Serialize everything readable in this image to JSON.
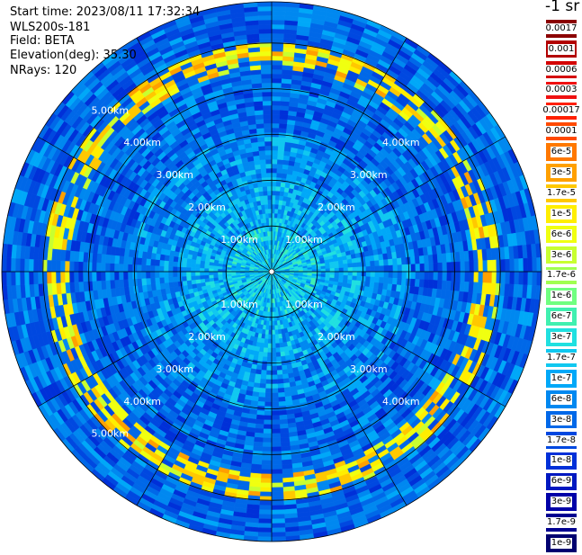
{
  "header": {
    "start_time": "Start time: 2023/08/11 17:32:34",
    "instrument": "WLS200s-181",
    "field": "Field: BETA",
    "elevation": "Elevation(deg): 35.30",
    "nrays": "NRays: 120"
  },
  "colorbar": {
    "unit": "-1 sr",
    "entries": [
      {
        "label": "0.0017",
        "color": "#8b0000"
      },
      {
        "label": "0.001",
        "color": "#b20000"
      },
      {
        "label": "0.0006",
        "color": "#d40000"
      },
      {
        "label": "0.0003",
        "color": "#f01010"
      },
      {
        "label": "0.00017",
        "color": "#ff2000"
      },
      {
        "label": "0.0001",
        "color": "#ff4a00"
      },
      {
        "label": "6e-5",
        "color": "#ff7800"
      },
      {
        "label": "3e-5",
        "color": "#ffa000"
      },
      {
        "label": "1.7e-5",
        "color": "#ffc800"
      },
      {
        "label": "1e-5",
        "color": "#ffee00"
      },
      {
        "label": "6e-6",
        "color": "#f0ff10"
      },
      {
        "label": "3e-6",
        "color": "#c8ff30"
      },
      {
        "label": "1.7e-6",
        "color": "#a0ff50"
      },
      {
        "label": "1e-6",
        "color": "#70ff80"
      },
      {
        "label": "6e-7",
        "color": "#40f0b0"
      },
      {
        "label": "3e-7",
        "color": "#20e0e0"
      },
      {
        "label": "1.7e-7",
        "color": "#10c8f0"
      },
      {
        "label": "1e-7",
        "color": "#00a8f8"
      },
      {
        "label": "6e-8",
        "color": "#0088f0"
      },
      {
        "label": "3e-8",
        "color": "#0068e8"
      },
      {
        "label": "1.7e-8",
        "color": "#0048e0"
      },
      {
        "label": "1e-8",
        "color": "#0030d8"
      },
      {
        "label": "6e-9",
        "color": "#0018c0"
      },
      {
        "label": "3e-9",
        "color": "#0000a8"
      },
      {
        "label": "1.7e-9",
        "color": "#000090"
      },
      {
        "label": "1e-9",
        "color": "#000070"
      }
    ]
  },
  "chart_data": {
    "type": "heatmap",
    "projection": "polar-ppi",
    "field": "BETA",
    "rays": 120,
    "max_range_km": 5.9,
    "range_rings_km": [
      1,
      2,
      3,
      4,
      5
    ],
    "ring_labels": [
      "1.00km",
      "2.00km",
      "3.00km",
      "4.00km",
      "5.00km"
    ],
    "spokes_deg": [
      0,
      30,
      60,
      90,
      120,
      150,
      180,
      210,
      240,
      270,
      300,
      330
    ],
    "color_scale": "log",
    "value_range": [
      1e-09,
      0.0017
    ],
    "bands": [
      {
        "range_km": [
          0.0,
          1.0
        ],
        "level": 1.7e-07,
        "note": "light blue near-field"
      },
      {
        "range_km": [
          1.0,
          2.0
        ],
        "level": 1e-07
      },
      {
        "range_km": [
          2.0,
          3.0
        ],
        "level": 6e-08
      },
      {
        "range_km": [
          3.0,
          4.4
        ],
        "level": 3e-08
      },
      {
        "range_km": [
          4.4,
          5.0
        ],
        "level": 1e-05,
        "note": "intermittent yellow-red enhancement"
      },
      {
        "range_km": [
          5.0,
          5.9
        ],
        "level": 3e-08
      }
    ]
  }
}
